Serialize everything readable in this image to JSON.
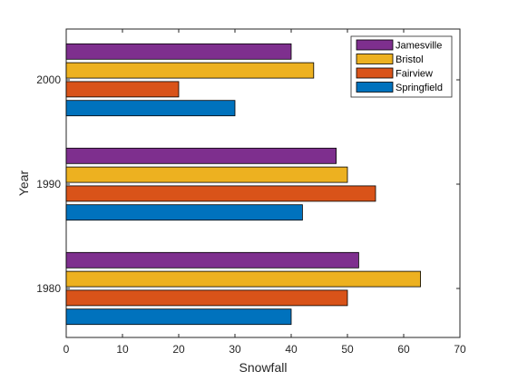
{
  "chart_data": {
    "type": "bar",
    "orientation": "horizontal",
    "xlabel": "Snowfall",
    "ylabel": "Year",
    "xlim": [
      0,
      70
    ],
    "xticks": [
      0,
      10,
      20,
      30,
      40,
      50,
      60,
      70
    ],
    "categories": [
      "1980",
      "1990",
      "2000"
    ],
    "series": [
      {
        "name": "Springfield",
        "color": "#0072BD",
        "values": [
          40,
          42,
          30
        ]
      },
      {
        "name": "Fairview",
        "color": "#D95319",
        "values": [
          50,
          55,
          20
        ]
      },
      {
        "name": "Bristol",
        "color": "#EDB120",
        "values": [
          63,
          50,
          44
        ]
      },
      {
        "name": "Jamesville",
        "color": "#7E2F8E",
        "values": [
          52,
          48,
          40
        ]
      }
    ],
    "grid": false,
    "legend_position": "top-right"
  }
}
